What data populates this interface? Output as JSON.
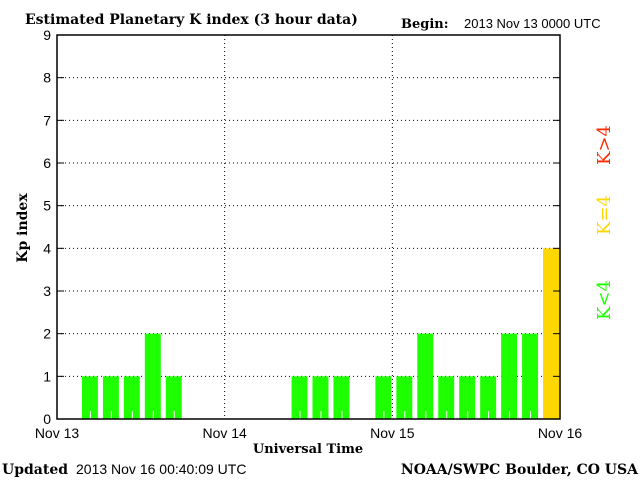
{
  "chart_data": {
    "type": "bar",
    "title": "Estimated Planetary K index (3 hour data)",
    "begin_label": "Begin:",
    "begin_value": "2013 Nov 13 0000 UTC",
    "xlabel": "Universal Time",
    "ylabel": "Kp index",
    "ylim": [
      0,
      9
    ],
    "yticks": [
      "0",
      "1",
      "2",
      "3",
      "4",
      "5",
      "6",
      "7",
      "8",
      "9"
    ],
    "xticks": [
      "Nov 13",
      "Nov 14",
      "Nov 15",
      "Nov 16"
    ],
    "grid": true,
    "bin_hours": 3,
    "values": [
      0,
      1,
      1,
      1,
      2,
      1,
      0,
      0,
      0,
      0,
      0,
      1,
      1,
      1,
      0,
      1,
      1,
      2,
      1,
      1,
      1,
      2,
      2,
      4
    ],
    "colors": {
      "low": "#1eff00",
      "mid": "#ffd700",
      "high": "#ff2a00"
    },
    "legend": [
      {
        "label": "K<4",
        "color": "#1eff00"
      },
      {
        "label": "K=4",
        "color": "#ffd700"
      },
      {
        "label": "K>4",
        "color": "#ff2a00"
      }
    ],
    "legend_placement": "right"
  },
  "footer": {
    "updated_label": "Updated",
    "updated_value": "2013 Nov 16 00:40:09 UTC",
    "source": "NOAA/SWPC Boulder, CO USA"
  }
}
